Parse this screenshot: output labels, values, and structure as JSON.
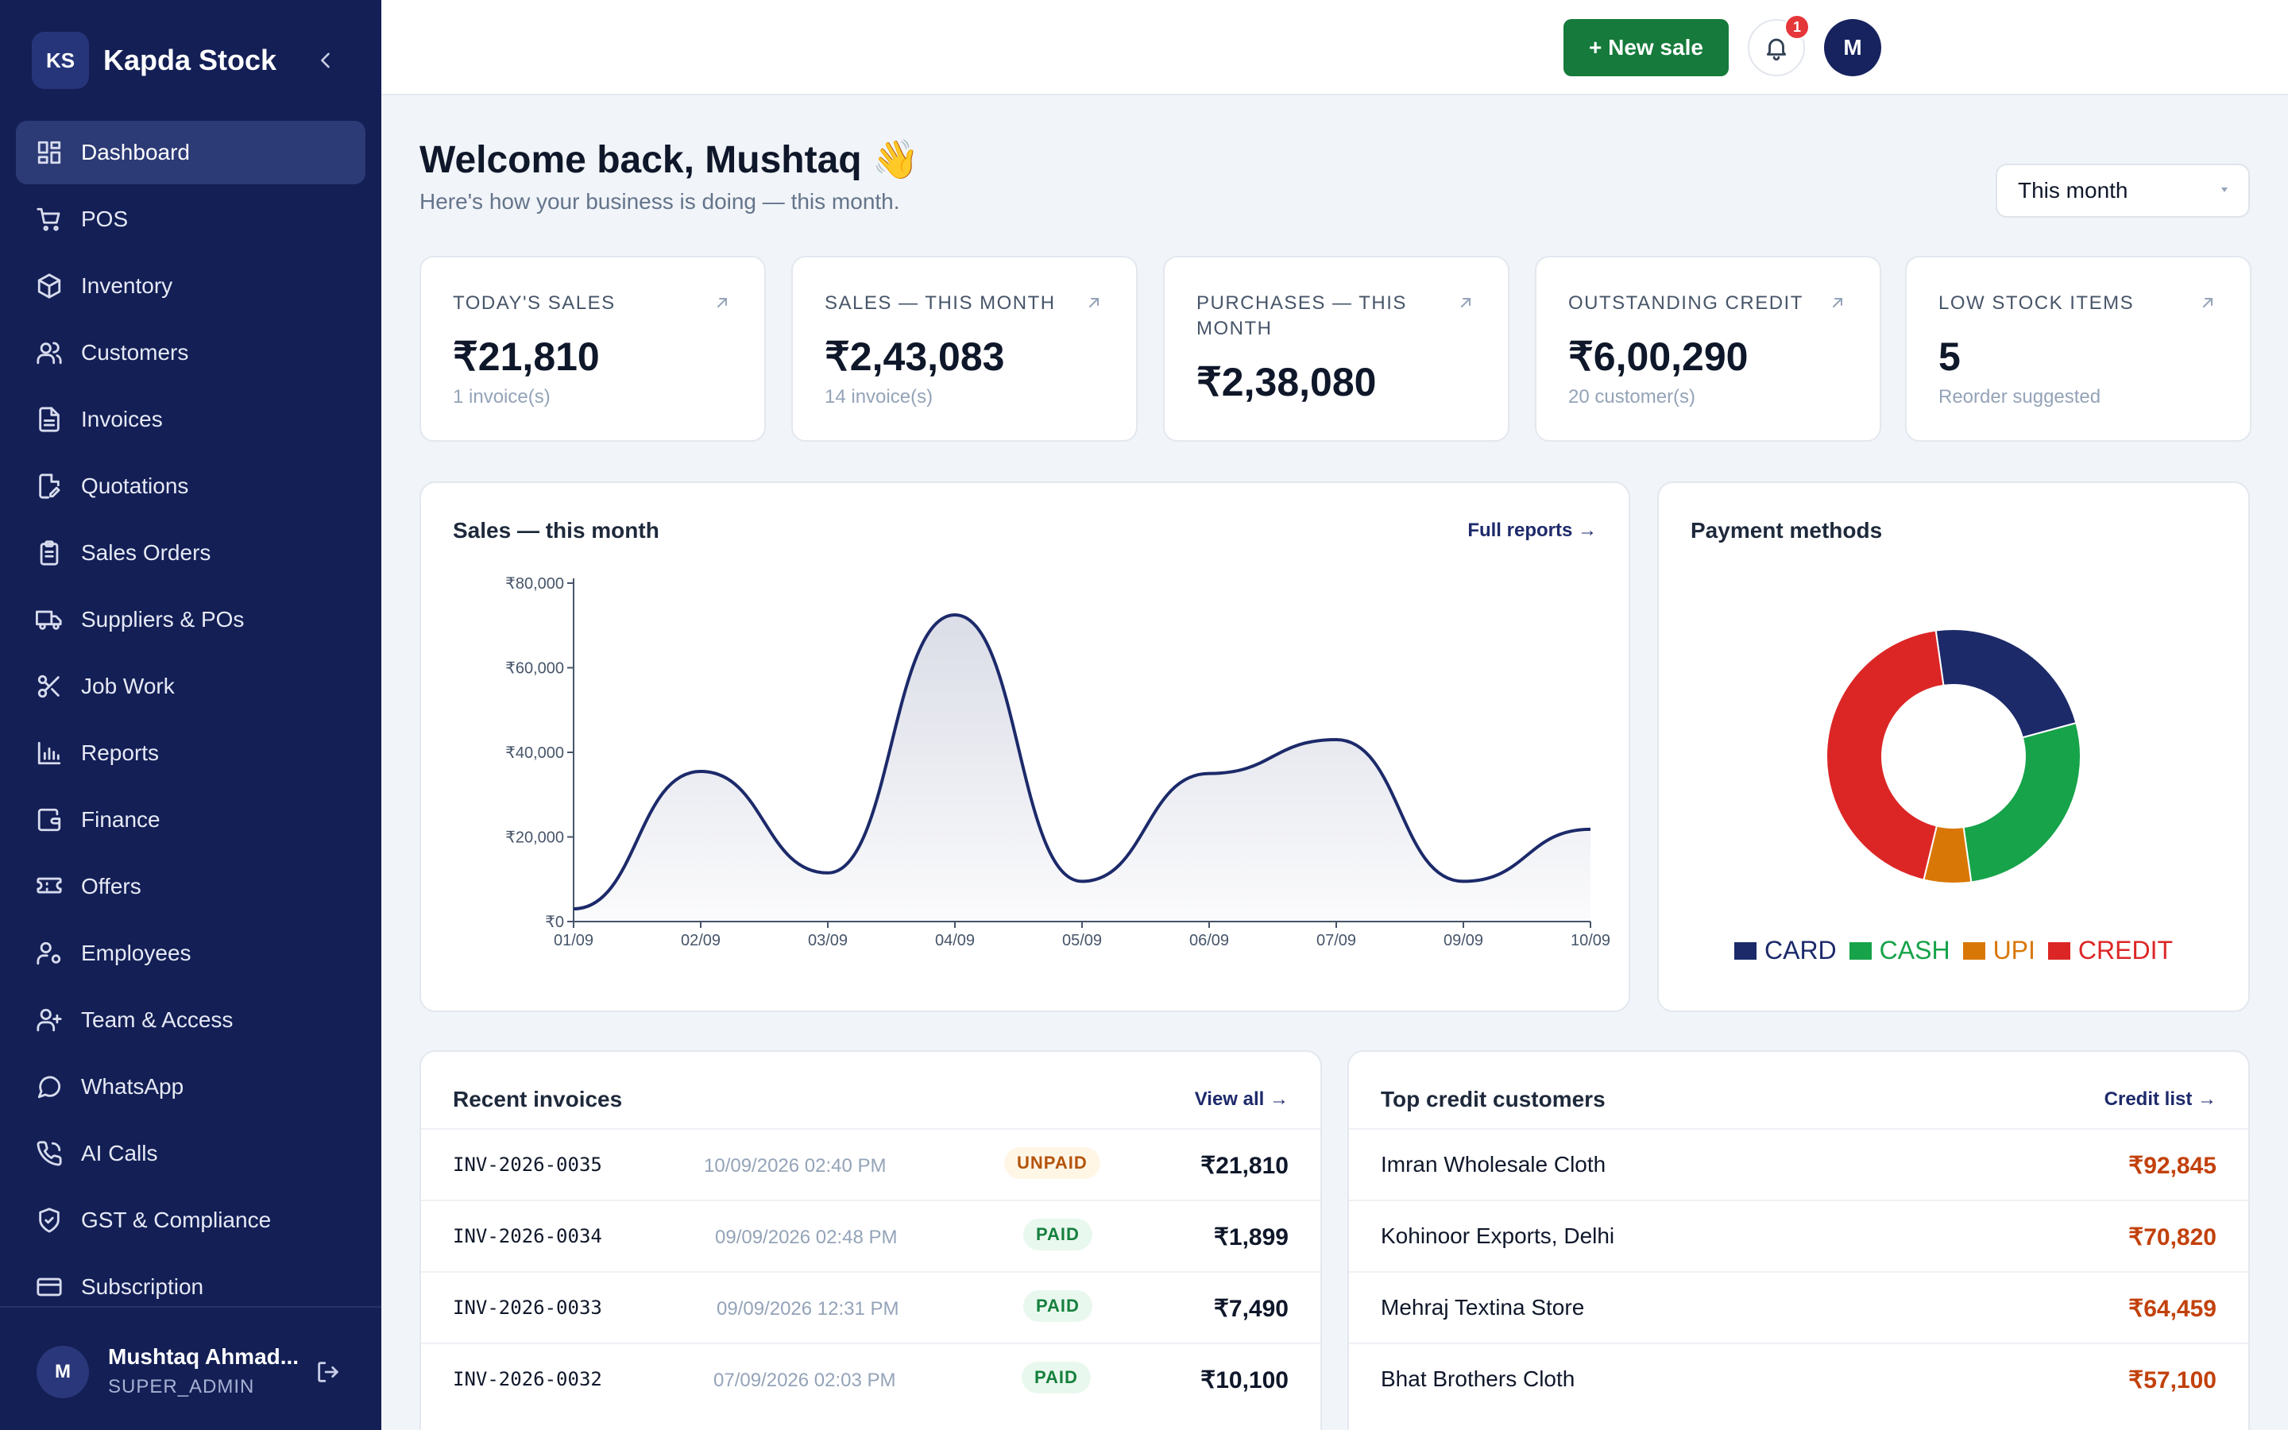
{
  "brand": {
    "logo": "KS",
    "name": "Kapda Stock"
  },
  "nav": [
    {
      "label": "Dashboard",
      "icon": "dashboard-icon",
      "active": true
    },
    {
      "label": "POS",
      "icon": "cart-icon"
    },
    {
      "label": "Inventory",
      "icon": "box-icon"
    },
    {
      "label": "Customers",
      "icon": "users-icon"
    },
    {
      "label": "Invoices",
      "icon": "file-icon"
    },
    {
      "label": "Quotations",
      "icon": "file-edit-icon"
    },
    {
      "label": "Sales Orders",
      "icon": "clipboard-icon"
    },
    {
      "label": "Suppliers & POs",
      "icon": "truck-icon"
    },
    {
      "label": "Job Work",
      "icon": "scissors-icon"
    },
    {
      "label": "Reports",
      "icon": "bar-chart-icon"
    },
    {
      "label": "Finance",
      "icon": "wallet-icon"
    },
    {
      "label": "Offers",
      "icon": "ticket-icon"
    },
    {
      "label": "Employees",
      "icon": "user-cog-icon"
    },
    {
      "label": "Team & Access",
      "icon": "user-plus-icon"
    },
    {
      "label": "WhatsApp",
      "icon": "chat-icon"
    },
    {
      "label": "AI Calls",
      "icon": "phone-icon"
    },
    {
      "label": "GST & Compliance",
      "icon": "shield-check-icon"
    },
    {
      "label": "Subscription",
      "icon": "credit-card-icon"
    }
  ],
  "user": {
    "initial": "M",
    "name": "Mushtaq Ahmad...",
    "role": "SUPER_ADMIN"
  },
  "topbar": {
    "new_sale": "+ New sale",
    "notifications": "1",
    "avatar": "M"
  },
  "header": {
    "welcome": "Welcome back, Mushtaq 👋",
    "subtitle": "Here's how your business is doing — this month.",
    "range": "This month"
  },
  "stats": [
    {
      "label": "TODAY'S SALES",
      "value": "₹21,810",
      "sub": "1 invoice(s)"
    },
    {
      "label": "SALES — THIS MONTH",
      "value": "₹2,43,083",
      "sub": "14 invoice(s)"
    },
    {
      "label": "PURCHASES — THIS MONTH",
      "value": "₹2,38,080",
      "sub": ""
    },
    {
      "label": "OUTSTANDING CREDIT",
      "value": "₹6,00,290",
      "sub": "20 customer(s)"
    },
    {
      "label": "LOW STOCK ITEMS",
      "value": "5",
      "sub": "Reorder suggested"
    }
  ],
  "sales_panel": {
    "title": "Sales — this month",
    "link": "Full reports →"
  },
  "payment_panel": {
    "title": "Payment methods"
  },
  "invoices_panel": {
    "title": "Recent invoices",
    "link": "View all →"
  },
  "credit_panel": {
    "title": "Top credit customers",
    "link": "Credit list →"
  },
  "invoices": [
    {
      "no": "INV-2026-0035",
      "date": "10/09/2026 02:40 PM",
      "status": "UNPAID",
      "amount": "₹21,810"
    },
    {
      "no": "INV-2026-0034",
      "date": "09/09/2026 02:48 PM",
      "status": "PAID",
      "amount": "₹1,899"
    },
    {
      "no": "INV-2026-0033",
      "date": "09/09/2026 12:31 PM",
      "status": "PAID",
      "amount": "₹7,490"
    },
    {
      "no": "INV-2026-0032",
      "date": "07/09/2026 02:03 PM",
      "status": "PAID",
      "amount": "₹10,100"
    }
  ],
  "credit_customers": [
    {
      "name": "Imran Wholesale Cloth",
      "amount": "₹92,845"
    },
    {
      "name": "Kohinoor Exports, Delhi",
      "amount": "₹70,820"
    },
    {
      "name": "Mehraj Textina Store",
      "amount": "₹64,459"
    },
    {
      "name": "Bhat Brothers Cloth",
      "amount": "₹57,100"
    }
  ],
  "colors": {
    "sidebar": "#131f55",
    "accent": "#1e2a6b",
    "primary_button": "#157a3b"
  },
  "chart_data": [
    {
      "type": "area",
      "title": "Sales — this month",
      "x": [
        "01/09",
        "02/09",
        "03/09",
        "04/09",
        "05/09",
        "06/09",
        "07/09",
        "09/09",
        "10/09"
      ],
      "values": [
        3000,
        35500,
        11500,
        72500,
        9500,
        35000,
        43000,
        9500,
        21810
      ],
      "ylim": [
        0,
        80000
      ],
      "yticks": [
        "₹0",
        "₹20,000",
        "₹40,000",
        "₹60,000",
        "₹80,000"
      ],
      "ytick_values": [
        0,
        20000,
        40000,
        60000,
        80000
      ]
    },
    {
      "type": "pie",
      "title": "Payment methods",
      "labels": [
        "CARD",
        "CASH",
        "UPI",
        "CREDIT"
      ],
      "values": [
        23,
        27,
        6,
        44
      ],
      "colors": [
        "#1c2a6a",
        "#16a34a",
        "#d97706",
        "#dc2626"
      ],
      "legend": "bottom"
    }
  ]
}
